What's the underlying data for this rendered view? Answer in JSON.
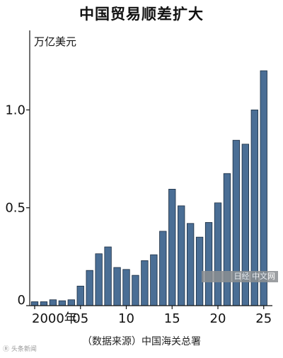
{
  "chart_data": {
    "type": "bar",
    "title": "中国贸易顺差扩大",
    "ylabel": "万亿美元",
    "xlabel": "",
    "x": [
      2000,
      2001,
      2002,
      2003,
      2004,
      2005,
      2006,
      2007,
      2008,
      2009,
      2010,
      2011,
      2012,
      2013,
      2014,
      2015,
      2016,
      2017,
      2018,
      2019,
      2020,
      2021,
      2022,
      2023,
      2024,
      2025
    ],
    "values": [
      0.02,
      0.02,
      0.03,
      0.025,
      0.03,
      0.1,
      0.18,
      0.265,
      0.3,
      0.195,
      0.185,
      0.155,
      0.23,
      0.26,
      0.38,
      0.595,
      0.51,
      0.42,
      0.35,
      0.425,
      0.525,
      0.675,
      0.845,
      0.825,
      1.0,
      1.2
    ],
    "x_tick_labels": [
      "2000年",
      "05",
      "10",
      "15",
      "20",
      "25"
    ],
    "x_tick_years": [
      2000,
      2005,
      2010,
      2015,
      2020,
      2025
    ],
    "y_ticks": [
      0,
      0.5,
      1.0
    ],
    "y_tick_labels": [
      "0",
      "0.5",
      "1.0"
    ],
    "ylim": [
      0,
      1.45
    ],
    "bar_color": "#4a6e95",
    "bar_edge": "#1a2c40",
    "grid": false
  },
  "source_note": "（数据来源）中国海关总署",
  "watermark_left": "Ⓡ 头条新闻",
  "watermark_right": "日经 中文网"
}
